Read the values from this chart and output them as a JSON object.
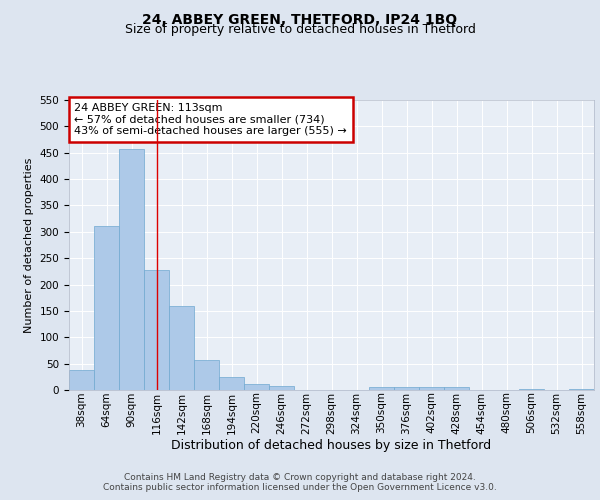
{
  "title": "24, ABBEY GREEN, THETFORD, IP24 1BQ",
  "subtitle": "Size of property relative to detached houses in Thetford",
  "xlabel": "Distribution of detached houses by size in Thetford",
  "ylabel": "Number of detached properties",
  "bar_values": [
    38,
    311,
    458,
    228,
    159,
    57,
    25,
    11,
    7,
    0,
    0,
    0,
    5,
    5,
    5,
    5,
    0,
    0,
    2,
    0,
    1
  ],
  "bin_labels": [
    "38sqm",
    "64sqm",
    "90sqm",
    "116sqm",
    "142sqm",
    "168sqm",
    "194sqm",
    "220sqm",
    "246sqm",
    "272sqm",
    "298sqm",
    "324sqm",
    "350sqm",
    "376sqm",
    "402sqm",
    "428sqm",
    "454sqm",
    "480sqm",
    "506sqm",
    "532sqm",
    "558sqm"
  ],
  "bin_width": 26,
  "bin_starts": [
    25,
    51,
    77,
    103,
    129,
    155,
    181,
    207,
    233,
    259,
    285,
    311,
    337,
    363,
    389,
    415,
    441,
    467,
    493,
    519,
    545
  ],
  "bar_color": "#adc9e8",
  "bar_edge_color": "#6fa8d0",
  "vline_x": 116,
  "vline_color": "#dd0000",
  "ylim": [
    0,
    550
  ],
  "yticks": [
    0,
    50,
    100,
    150,
    200,
    250,
    300,
    350,
    400,
    450,
    500,
    550
  ],
  "annotation_text": "24 ABBEY GREEN: 113sqm\n← 57% of detached houses are smaller (734)\n43% of semi-detached houses are larger (555) →",
  "annotation_box_color": "#ffffff",
  "annotation_box_edge": "#cc0000",
  "footer_line1": "Contains HM Land Registry data © Crown copyright and database right 2024.",
  "footer_line2": "Contains public sector information licensed under the Open Government Licence v3.0.",
  "bg_color": "#dde5f0",
  "plot_bg_color": "#e8eef6",
  "grid_color": "#ffffff",
  "title_fontsize": 10,
  "subtitle_fontsize": 9,
  "xlabel_fontsize": 9,
  "ylabel_fontsize": 8,
  "tick_fontsize": 7.5,
  "annotation_fontsize": 8,
  "footer_fontsize": 6.5
}
